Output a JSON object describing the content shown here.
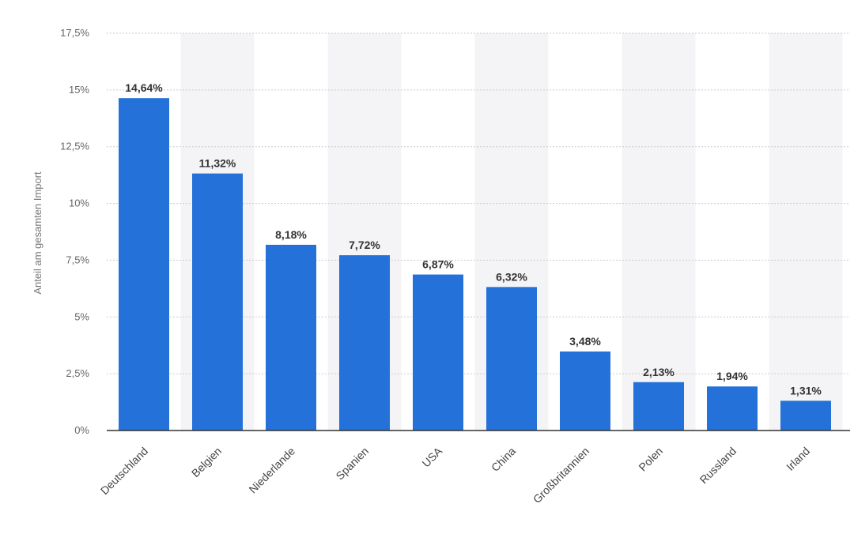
{
  "chart_data": {
    "type": "bar",
    "ylabel": "Anteil am gesamten Import",
    "xlabel": "",
    "categories": [
      "Deutschland",
      "Belgien",
      "Niederlande",
      "Spanien",
      "USA",
      "China",
      "Großbritannien",
      "Polen",
      "Russland",
      "Irland"
    ],
    "values": [
      14.64,
      11.32,
      8.18,
      7.72,
      6.87,
      6.32,
      3.48,
      2.13,
      1.94,
      1.31
    ],
    "data_labels": [
      "14,64%",
      "11,32%",
      "8,18%",
      "7,72%",
      "6,87%",
      "6,32%",
      "3,48%",
      "2,13%",
      "1,94%",
      "1,31%"
    ],
    "ylim": [
      0,
      17.5
    ],
    "yticks": [
      0,
      2.5,
      5,
      7.5,
      10,
      12.5,
      15,
      17.5
    ],
    "ytick_labels": [
      "0%",
      "2,5%",
      "5%",
      "7,5%",
      "10%",
      "12,5%",
      "15%",
      "17,5%"
    ],
    "grid": true,
    "colors": {
      "bar": "#2471d9",
      "grid": "#cccccc",
      "band": "#f4f4f6",
      "axis": "#333333"
    }
  }
}
